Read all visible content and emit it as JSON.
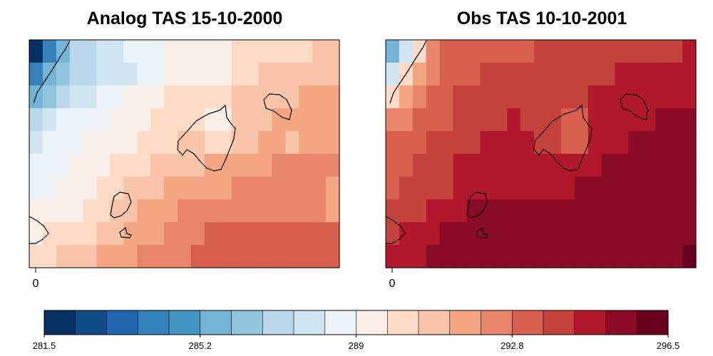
{
  "left_panel": {
    "title": "Analog TAS 15-10-2000",
    "x_tick_label": "0",
    "grid": [
      [
        0,
        3,
        5,
        7,
        7,
        8,
        8,
        9,
        9,
        9,
        10,
        10,
        10,
        10,
        10,
        11,
        11,
        11,
        11,
        11,
        11,
        12,
        12
      ],
      [
        3,
        5,
        6,
        7,
        7,
        8,
        8,
        8,
        9,
        9,
        10,
        10,
        10,
        10,
        10,
        11,
        11,
        12,
        12,
        12,
        12,
        12,
        12
      ],
      [
        5,
        6,
        7,
        8,
        8,
        9,
        9,
        10,
        10,
        10,
        11,
        11,
        11,
        11,
        11,
        12,
        12,
        12,
        12,
        12,
        13,
        13,
        13
      ],
      [
        7,
        8,
        9,
        9,
        9,
        9,
        10,
        10,
        10,
        11,
        11,
        11,
        11,
        10,
        10,
        12,
        12,
        12,
        13,
        13,
        13,
        13,
        13
      ],
      [
        8,
        9,
        9,
        9,
        10,
        10,
        10,
        10,
        11,
        11,
        11,
        12,
        12,
        11,
        11,
        12,
        12,
        13,
        13,
        12,
        13,
        13,
        13
      ],
      [
        9,
        9,
        9,
        10,
        10,
        10,
        11,
        11,
        11,
        12,
        12,
        12,
        12,
        13,
        13,
        13,
        13,
        13,
        14,
        14,
        14,
        14,
        14
      ],
      [
        9,
        9,
        10,
        10,
        10,
        11,
        11,
        12,
        12,
        12,
        13,
        13,
        13,
        13,
        13,
        14,
        14,
        14,
        14,
        14,
        14,
        14,
        13
      ],
      [
        10,
        10,
        10,
        10,
        11,
        11,
        12,
        12,
        13,
        13,
        13,
        14,
        14,
        14,
        14,
        14,
        14,
        14,
        14,
        14,
        14,
        14,
        13
      ],
      [
        10,
        11,
        11,
        11,
        11,
        12,
        12,
        13,
        13,
        13,
        14,
        14,
        14,
        15,
        15,
        15,
        15,
        15,
        15,
        15,
        15,
        15,
        15
      ],
      [
        11,
        11,
        12,
        12,
        12,
        13,
        13,
        13,
        14,
        14,
        14,
        14,
        15,
        15,
        15,
        15,
        15,
        15,
        15,
        15,
        15,
        15,
        15
      ]
    ]
  },
  "right_panel": {
    "title": "Obs TAS 10-10-2001",
    "x_tick_label": "0",
    "grid": [
      [
        5,
        8,
        11,
        14,
        15,
        15,
        15,
        15,
        15,
        15,
        15,
        16,
        16,
        16,
        16,
        16,
        16,
        16,
        16,
        16,
        16,
        16,
        17
      ],
      [
        8,
        11,
        13,
        14,
        15,
        15,
        15,
        16,
        16,
        16,
        16,
        16,
        16,
        16,
        16,
        16,
        16,
        17,
        17,
        17,
        17,
        17,
        17
      ],
      [
        11,
        13,
        14,
        15,
        15,
        16,
        16,
        16,
        16,
        16,
        16,
        16,
        16,
        16,
        16,
        17,
        17,
        17,
        17,
        17,
        17,
        17,
        17
      ],
      [
        14,
        14,
        15,
        15,
        15,
        16,
        16,
        16,
        16,
        17,
        16,
        16,
        16,
        15,
        15,
        17,
        17,
        17,
        17,
        17,
        18,
        18,
        18
      ],
      [
        15,
        15,
        15,
        16,
        16,
        16,
        16,
        17,
        17,
        17,
        17,
        16,
        16,
        15,
        15,
        17,
        17,
        17,
        18,
        18,
        18,
        18,
        18
      ],
      [
        15,
        15,
        16,
        16,
        16,
        17,
        17,
        17,
        17,
        17,
        17,
        17,
        17,
        17,
        17,
        17,
        18,
        18,
        18,
        18,
        18,
        18,
        18
      ],
      [
        15,
        16,
        16,
        16,
        16,
        17,
        17,
        17,
        17,
        17,
        17,
        17,
        17,
        17,
        18,
        18,
        18,
        18,
        18,
        18,
        18,
        18,
        18
      ],
      [
        16,
        16,
        16,
        17,
        17,
        17,
        18,
        18,
        18,
        18,
        18,
        18,
        18,
        18,
        18,
        18,
        18,
        18,
        18,
        18,
        18,
        18,
        18
      ],
      [
        16,
        17,
        17,
        17,
        18,
        18,
        18,
        18,
        18,
        18,
        18,
        18,
        18,
        18,
        18,
        18,
        18,
        18,
        18,
        18,
        18,
        18,
        18
      ],
      [
        17,
        17,
        17,
        18,
        18,
        18,
        18,
        18,
        18,
        18,
        18,
        18,
        18,
        18,
        18,
        18,
        18,
        18,
        18,
        18,
        18,
        18,
        19
      ]
    ]
  },
  "colorbar": {
    "colors": [
      "#053061",
      "#134b87",
      "#2166ac",
      "#3581b9",
      "#4393c3",
      "#74b4d6",
      "#92c5de",
      "#bad8e9",
      "#d1e5f0",
      "#ecf2f5",
      "#f9efe9",
      "#fddbc7",
      "#f9c4a9",
      "#f4a582",
      "#e7866a",
      "#d6604d",
      "#c4423c",
      "#b2182b",
      "#8a0b25",
      "#67001f"
    ],
    "tick_labels": [
      "281.5",
      "285.2",
      "289",
      "292.8",
      "296.5"
    ]
  }
}
